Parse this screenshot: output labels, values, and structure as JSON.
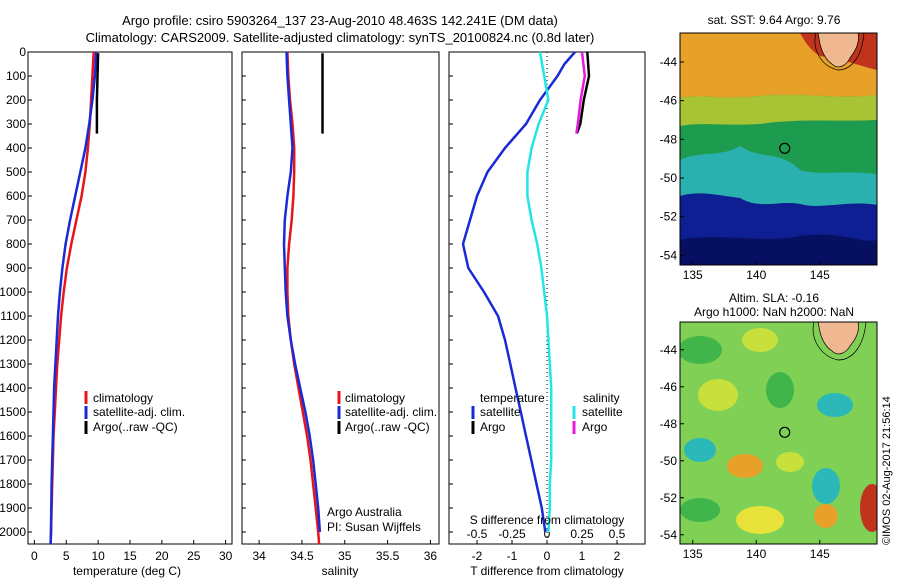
{
  "header": {
    "line1": "Argo profile: csiro 5903264_137 23-Aug-2010 48.463S 142.241E (DM data)",
    "line2": "Climatology: CARS2009. Satellite-adjusted climatology: synTS_20100824.nc (0.8d later)"
  },
  "colors": {
    "climatology": "#e8141a",
    "satellite": "#1a2ad6",
    "argo": "#000000",
    "sat_salinity": "#22e6e6",
    "argo_salinity": "#e818e0"
  },
  "chart_data": [
    {
      "type": "line",
      "id": "temperature",
      "xlabel": "temperature (deg C)",
      "xlim": [
        -1,
        31
      ],
      "xticks": [
        0,
        5,
        10,
        15,
        20,
        25,
        30
      ],
      "ylim": [
        2050,
        0
      ],
      "yticks": [
        0,
        100,
        200,
        300,
        400,
        500,
        600,
        700,
        800,
        900,
        1000,
        1100,
        1200,
        1300,
        1400,
        1500,
        1600,
        1700,
        1800,
        1900,
        2000
      ],
      "legend": [
        "climatology",
        "satellite-adj. clim.",
        "Argo(..raw -QC)"
      ],
      "series": [
        {
          "name": "climatology",
          "color": "climatology",
          "depth": [
            0,
            100,
            200,
            300,
            400,
            500,
            600,
            700,
            800,
            900,
            1000,
            1100,
            1200,
            1300,
            1400,
            1500,
            1600,
            1700,
            1800,
            1900,
            2000,
            2050
          ],
          "values": [
            9.3,
            9.1,
            8.9,
            8.7,
            8.4,
            8.0,
            7.4,
            6.6,
            5.8,
            5.1,
            4.6,
            4.2,
            3.9,
            3.6,
            3.4,
            3.2,
            3.0,
            2.9,
            2.8,
            2.7,
            2.6,
            2.55
          ]
        },
        {
          "name": "satellite-adj. clim.",
          "color": "satellite",
          "depth": [
            0,
            100,
            200,
            300,
            400,
            500,
            600,
            700,
            800,
            900,
            1000,
            1100,
            1200,
            1300,
            1400,
            1500,
            1600,
            1700,
            1800,
            1900,
            2000,
            2050
          ],
          "values": [
            9.7,
            9.5,
            9.1,
            8.6,
            8.0,
            7.2,
            6.4,
            5.6,
            4.9,
            4.4,
            4.0,
            3.7,
            3.5,
            3.3,
            3.1,
            3.0,
            2.9,
            2.8,
            2.7,
            2.65,
            2.6,
            2.55
          ]
        },
        {
          "name": "Argo(..raw -QC)",
          "color": "argo",
          "depth": [
            5,
            100,
            200,
            340
          ],
          "values": [
            10.0,
            9.9,
            9.8,
            9.8
          ]
        }
      ]
    },
    {
      "type": "line",
      "id": "salinity",
      "xlabel": "salinity",
      "xlim": [
        33.8,
        36.1
      ],
      "xticks": [
        34,
        34.5,
        35,
        35.5,
        36
      ],
      "ylim": [
        2050,
        0
      ],
      "legend": [
        "climatology",
        "satellite-adj. clim.",
        "Argo(..raw -QC)"
      ],
      "annotation": [
        "Argo Australia",
        "PI: Susan Wijffels"
      ],
      "series": [
        {
          "name": "climatology",
          "color": "climatology",
          "depth": [
            0,
            100,
            200,
            300,
            400,
            500,
            600,
            700,
            800,
            900,
            1000,
            1100,
            1200,
            1300,
            1400,
            1500,
            1600,
            1700,
            1800,
            1900,
            2000,
            2050
          ],
          "values": [
            34.33,
            34.34,
            34.36,
            34.39,
            34.41,
            34.41,
            34.4,
            34.38,
            34.35,
            34.33,
            34.33,
            34.34,
            34.37,
            34.41,
            34.46,
            34.51,
            34.56,
            34.6,
            34.63,
            34.66,
            34.69,
            34.7
          ]
        },
        {
          "name": "satellite-adj. clim.",
          "color": "satellite",
          "depth": [
            0,
            100,
            200,
            300,
            400,
            500,
            600,
            700,
            800,
            900,
            1000,
            1100,
            1200,
            1300,
            1400,
            1500,
            1600,
            1700,
            1800,
            1900,
            2000
          ],
          "values": [
            34.32,
            34.33,
            34.35,
            34.37,
            34.39,
            34.37,
            34.33,
            34.3,
            34.29,
            34.3,
            34.31,
            34.33,
            34.37,
            34.42,
            34.48,
            34.54,
            34.59,
            34.63,
            34.66,
            34.69,
            34.71
          ]
        },
        {
          "name": "Argo(..raw -QC)",
          "color": "argo",
          "depth": [
            5,
            340
          ],
          "values": [
            34.74,
            34.74
          ]
        }
      ]
    },
    {
      "type": "line",
      "id": "difference",
      "xlabel": "T difference from climatology",
      "xlabel_top": "S difference from climatology",
      "xlim": [
        -2.8,
        2.8
      ],
      "xticks": [
        -2,
        -1,
        0,
        1,
        2
      ],
      "xticks_s": [
        "-0.5",
        "-0.25",
        "0",
        "0.25",
        "0.5"
      ],
      "ylim": [
        2050,
        0
      ],
      "legend_headers": [
        "temperature",
        "salinity"
      ],
      "legend": [
        "satellite",
        "Argo",
        "satellite",
        "Argo"
      ],
      "series": [
        {
          "name": "satellite",
          "group": "temperature",
          "color": "satellite",
          "depth": [
            0,
            50,
            100,
            200,
            300,
            400,
            500,
            600,
            700,
            800,
            900,
            1000,
            1100,
            1200,
            1300,
            1400,
            1500,
            1600,
            1700,
            1800,
            1900,
            2000
          ],
          "values": [
            0.8,
            0.5,
            0.3,
            -0.2,
            -0.6,
            -1.2,
            -1.7,
            -2.0,
            -2.2,
            -2.4,
            -2.25,
            -1.8,
            -1.4,
            -1.2,
            -1.05,
            -0.9,
            -0.75,
            -0.6,
            -0.45,
            -0.3,
            -0.15,
            -0.05
          ]
        },
        {
          "name": "Argo",
          "group": "temperature",
          "color": "argo",
          "depth": [
            0,
            100,
            200,
            300,
            340
          ],
          "values": [
            1.15,
            1.2,
            1.05,
            0.95,
            0.85
          ]
        },
        {
          "name": "satellite",
          "group": "salinity",
          "color": "sat_salinity",
          "depth": [
            0,
            100,
            200,
            300,
            400,
            500,
            600,
            700,
            800,
            900,
            1000,
            1100,
            1200,
            1300,
            1400,
            1500,
            1600,
            1700,
            1800,
            1900,
            2000
          ],
          "values": [
            -0.05,
            -0.02,
            0.01,
            -0.06,
            -0.11,
            -0.14,
            -0.14,
            -0.11,
            -0.07,
            -0.04,
            -0.02,
            0.0,
            0.01,
            0.02,
            0.03,
            0.03,
            0.03,
            0.03,
            0.02,
            0.02,
            0.01
          ]
        },
        {
          "name": "Argo",
          "group": "salinity",
          "color": "argo_salinity",
          "depth": [
            0,
            100,
            200,
            300,
            340
          ],
          "values": [
            0.25,
            0.27,
            0.24,
            0.22,
            0.21
          ]
        }
      ]
    },
    {
      "type": "heatmap",
      "id": "sst-map",
      "title": "sat. SST: 9.64 Argo: 9.76",
      "xticks": [
        135,
        140,
        145
      ],
      "yticks": [
        -44,
        -46,
        -48,
        -50,
        -52,
        -54
      ],
      "xlim": [
        134,
        149.5
      ],
      "ylim": [
        -54.5,
        -42.5
      ],
      "float_position": {
        "lon": 142.241,
        "lat": -48.463
      }
    },
    {
      "type": "heatmap",
      "id": "sla-map",
      "title": "Altim. SLA: -0.16",
      "subtitle": "Argo h1000: NaN h2000: NaN",
      "xticks": [
        135,
        140,
        145
      ],
      "yticks": [
        -44,
        -46,
        -48,
        -50,
        -52,
        -54
      ],
      "xlim": [
        134,
        149.5
      ],
      "ylim": [
        -54.5,
        -42.5
      ],
      "float_position": {
        "lon": 142.241,
        "lat": -48.463
      }
    }
  ],
  "footer": {
    "credit": "©IMOS 02-Aug-2017 21:56:14"
  }
}
